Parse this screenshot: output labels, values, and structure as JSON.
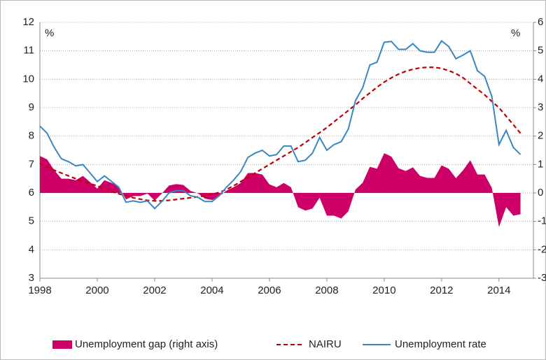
{
  "chart_data": {
    "type": "line",
    "y_unit": "%",
    "y2_unit": "%",
    "x": [
      1998,
      1998.25,
      1998.5,
      1998.75,
      1999,
      1999.25,
      1999.5,
      1999.75,
      2000,
      2000.25,
      2000.5,
      2000.75,
      2001,
      2001.25,
      2001.5,
      2001.75,
      2002,
      2002.25,
      2002.5,
      2002.75,
      2003,
      2003.25,
      2003.5,
      2003.75,
      2004,
      2004.25,
      2004.5,
      2004.75,
      2005,
      2005.25,
      2005.5,
      2005.75,
      2006,
      2006.25,
      2006.5,
      2006.75,
      2007,
      2007.25,
      2007.5,
      2007.75,
      2008,
      2008.25,
      2008.5,
      2008.75,
      2009,
      2009.25,
      2009.5,
      2009.75,
      2010,
      2010.25,
      2010.5,
      2010.75,
      2011,
      2011.25,
      2011.5,
      2011.75,
      2012,
      2012.25,
      2012.5,
      2012.75,
      2013,
      2013.25,
      2013.5,
      2013.75,
      2014,
      2014.25,
      2014.5,
      2014.75
    ],
    "series": [
      {
        "name": "Unemployment gap (right axis)",
        "type": "area",
        "axis": "y2",
        "color": "#cc0066",
        "values": [
          1.3,
          1.18,
          0.8,
          0.5,
          0.5,
          0.45,
          0.6,
          0.38,
          0.15,
          0.45,
          0.35,
          0.23,
          -0.23,
          -0.11,
          -0.11,
          -0.02,
          -0.27,
          -0.02,
          0.26,
          0.31,
          0.28,
          0.07,
          -0.01,
          -0.2,
          -0.25,
          -0.12,
          0.08,
          0.2,
          0.35,
          0.7,
          0.7,
          0.65,
          0.3,
          0.2,
          0.35,
          0.2,
          -0.5,
          -0.62,
          -0.55,
          -0.17,
          -0.8,
          -0.8,
          -0.9,
          -0.65,
          0.12,
          0.36,
          0.92,
          0.85,
          1.4,
          1.28,
          0.87,
          0.77,
          0.9,
          0.6,
          0.53,
          0.53,
          0.97,
          0.85,
          0.52,
          0.8,
          1.15,
          0.65,
          0.65,
          0.18,
          -1.2,
          -0.5,
          -0.8,
          -0.75
        ]
      },
      {
        "name": "NAIRU",
        "type": "line",
        "dashed": true,
        "color": "#c00000",
        "values": [
          7.05,
          6.92,
          6.8,
          6.7,
          6.6,
          6.5,
          6.4,
          6.32,
          6.25,
          6.15,
          6.05,
          5.97,
          5.9,
          5.83,
          5.78,
          5.74,
          5.72,
          5.72,
          5.74,
          5.77,
          5.8,
          5.83,
          5.86,
          5.9,
          5.95,
          6.02,
          6.12,
          6.25,
          6.4,
          6.55,
          6.7,
          6.85,
          7.0,
          7.15,
          7.3,
          7.45,
          7.6,
          7.77,
          7.95,
          8.12,
          8.3,
          8.5,
          8.7,
          8.9,
          9.1,
          9.32,
          9.52,
          9.72,
          9.9,
          10.05,
          10.18,
          10.28,
          10.35,
          10.4,
          10.42,
          10.42,
          10.38,
          10.3,
          10.2,
          10.05,
          9.85,
          9.65,
          9.45,
          9.22,
          9.0,
          8.7,
          8.4,
          8.1
        ]
      },
      {
        "name": "Unemployment rate",
        "type": "line",
        "dashed": false,
        "color": "#3a87c0",
        "values": [
          8.35,
          8.1,
          7.6,
          7.2,
          7.1,
          6.95,
          7.0,
          6.7,
          6.4,
          6.6,
          6.4,
          6.2,
          5.67,
          5.72,
          5.67,
          5.72,
          5.45,
          5.7,
          6.0,
          6.08,
          6.08,
          5.9,
          5.85,
          5.7,
          5.7,
          5.9,
          6.2,
          6.45,
          6.75,
          7.25,
          7.4,
          7.5,
          7.3,
          7.35,
          7.65,
          7.65,
          7.1,
          7.15,
          7.4,
          7.95,
          7.5,
          7.7,
          7.8,
          8.25,
          9.25,
          9.7,
          10.5,
          10.6,
          11.3,
          11.33,
          11.05,
          11.05,
          11.25,
          11.0,
          10.95,
          10.95,
          11.35,
          11.15,
          10.72,
          10.85,
          11.0,
          10.3,
          10.1,
          9.4,
          7.7,
          8.2,
          7.6,
          7.35
        ]
      }
    ],
    "xlim": [
      1998,
      2015.2
    ],
    "xticks": [
      1998,
      2000,
      2002,
      2004,
      2006,
      2008,
      2010,
      2012,
      2014
    ],
    "ylim": [
      3,
      12
    ],
    "yticks": [
      3,
      4,
      5,
      6,
      7,
      8,
      9,
      10,
      11,
      12
    ],
    "y2lim": [
      -3,
      6
    ],
    "y2ticks": [
      -3,
      -2,
      -1,
      0,
      1,
      2,
      3,
      4,
      5,
      6
    ],
    "grid": true
  }
}
